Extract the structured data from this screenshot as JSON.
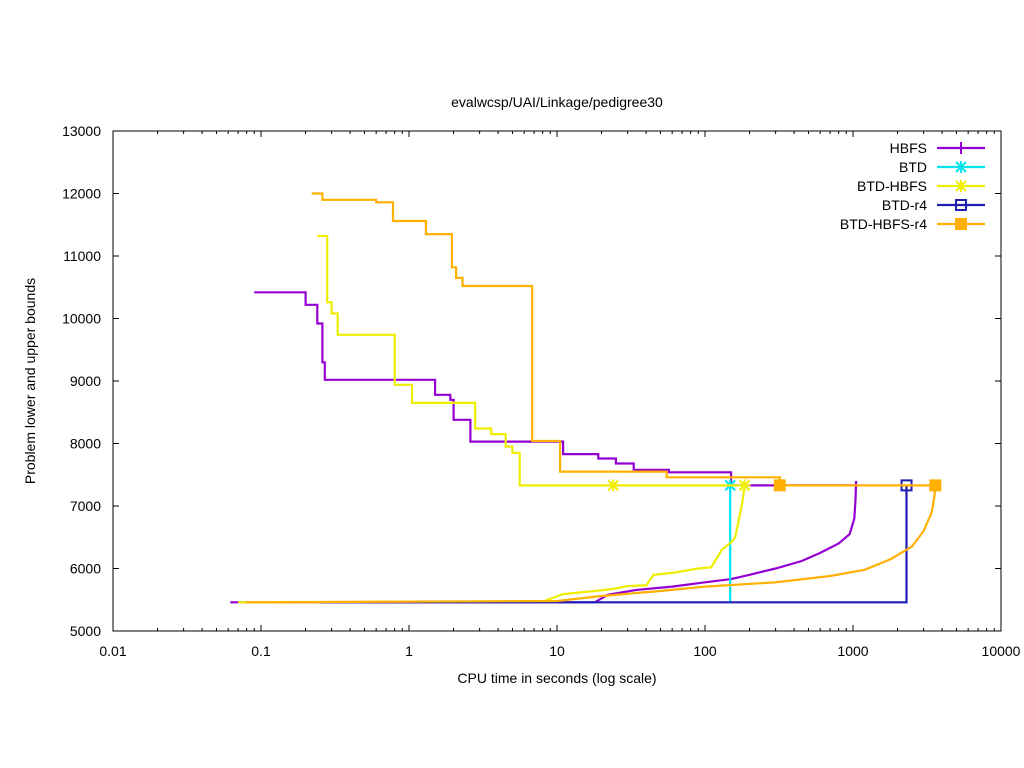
{
  "chart_data": {
    "type": "line",
    "title": "evalwcsp/UAI/Linkage/pedigree30",
    "xlabel": "CPU time in seconds (log scale)",
    "ylabel": "Problem lower and upper bounds",
    "xscale": "log",
    "xlim": [
      0.01,
      10000
    ],
    "ylim": [
      5000,
      13000
    ],
    "x_ticks": [
      0.01,
      0.1,
      1,
      10,
      100,
      1000,
      10000
    ],
    "x_tick_labels": [
      "0.01",
      "0.1",
      "1",
      "10",
      "100",
      "1000",
      "10000"
    ],
    "y_ticks": [
      5000,
      6000,
      7000,
      8000,
      9000,
      10000,
      11000,
      12000,
      13000
    ],
    "y_tick_labels": [
      "5000",
      "6000",
      "7000",
      "8000",
      "9000",
      "10000",
      "11000",
      "12000",
      "13000"
    ],
    "grid": false,
    "legend_position": "top-right",
    "series": [
      {
        "name": "HBFS",
        "color": "#9400d3",
        "marker": "plus",
        "upper": [
          [
            0.09,
            10420
          ],
          [
            0.2,
            10420
          ],
          [
            0.2,
            10220
          ],
          [
            0.24,
            10220
          ],
          [
            0.24,
            9920
          ],
          [
            0.26,
            9920
          ],
          [
            0.26,
            9300
          ],
          [
            0.27,
            9300
          ],
          [
            0.27,
            9020
          ],
          [
            1.5,
            9020
          ],
          [
            1.5,
            8780
          ],
          [
            1.9,
            8780
          ],
          [
            1.9,
            8700
          ],
          [
            2.0,
            8700
          ],
          [
            2.0,
            8380
          ],
          [
            2.6,
            8380
          ],
          [
            2.6,
            8030
          ],
          [
            11,
            8030
          ],
          [
            11,
            7830
          ],
          [
            19,
            7830
          ],
          [
            19,
            7760
          ],
          [
            25,
            7760
          ],
          [
            25,
            7680
          ],
          [
            33,
            7680
          ],
          [
            33,
            7580
          ],
          [
            57,
            7580
          ],
          [
            57,
            7540
          ],
          [
            150,
            7540
          ],
          [
            150,
            7330
          ],
          [
            1050,
            7330
          ]
        ],
        "lower": [
          [
            0.062,
            5460
          ],
          [
            18,
            5460
          ],
          [
            22,
            5580
          ],
          [
            35,
            5660
          ],
          [
            60,
            5710
          ],
          [
            100,
            5780
          ],
          [
            150,
            5830
          ],
          [
            200,
            5900
          ],
          [
            300,
            6000
          ],
          [
            450,
            6120
          ],
          [
            600,
            6250
          ],
          [
            800,
            6400
          ],
          [
            950,
            6550
          ],
          [
            1020,
            6800
          ],
          [
            1040,
            7100
          ],
          [
            1050,
            7400
          ]
        ],
        "marker_points": []
      },
      {
        "name": "BTD",
        "color": "#00e5ee",
        "marker": "star",
        "upper": [
          [
            148,
            7330
          ],
          [
            148,
            5460
          ]
        ],
        "lower": [],
        "marker_points": [
          [
            148,
            7330
          ]
        ]
      },
      {
        "name": "BTD-HBFS",
        "color": "#eeee00",
        "marker": "star",
        "upper": [
          [
            0.24,
            11320
          ],
          [
            0.28,
            11320
          ],
          [
            0.28,
            10260
          ],
          [
            0.3,
            10260
          ],
          [
            0.3,
            10080
          ],
          [
            0.33,
            10080
          ],
          [
            0.33,
            9740
          ],
          [
            0.8,
            9740
          ],
          [
            0.8,
            8940
          ],
          [
            1.05,
            8940
          ],
          [
            1.05,
            8650
          ],
          [
            2.8,
            8650
          ],
          [
            2.8,
            8240
          ],
          [
            3.6,
            8240
          ],
          [
            3.6,
            8150
          ],
          [
            4.5,
            8150
          ],
          [
            4.5,
            7950
          ],
          [
            5.0,
            7950
          ],
          [
            5.0,
            7850
          ],
          [
            5.6,
            7850
          ],
          [
            5.6,
            7330
          ],
          [
            185,
            7330
          ]
        ],
        "lower": [
          [
            0.07,
            5460
          ],
          [
            8,
            5470
          ],
          [
            11,
            5590
          ],
          [
            18,
            5640
          ],
          [
            25,
            5680
          ],
          [
            30,
            5720
          ],
          [
            40,
            5730
          ],
          [
            45,
            5900
          ],
          [
            60,
            5930
          ],
          [
            90,
            6000
          ],
          [
            110,
            6020
          ],
          [
            130,
            6300
          ],
          [
            150,
            6420
          ],
          [
            160,
            6500
          ],
          [
            170,
            6800
          ],
          [
            180,
            7100
          ],
          [
            185,
            7330
          ]
        ],
        "marker_points": [
          [
            24,
            7330
          ],
          [
            185,
            7330
          ]
        ]
      },
      {
        "name": "BTD-r4",
        "color": "#1f1fb4",
        "marker": "square-open",
        "upper": [
          [
            2300,
            7330
          ],
          [
            2300,
            5460
          ],
          [
            0.25,
            5460
          ]
        ],
        "lower": [],
        "marker_points": [
          [
            2300,
            7330
          ]
        ]
      },
      {
        "name": "BTD-HBFS-r4",
        "color": "#ffb000",
        "marker": "square-filled",
        "upper": [
          [
            0.22,
            12000
          ],
          [
            0.26,
            12000
          ],
          [
            0.26,
            11900
          ],
          [
            0.6,
            11900
          ],
          [
            0.6,
            11860
          ],
          [
            0.78,
            11860
          ],
          [
            0.78,
            11560
          ],
          [
            1.3,
            11560
          ],
          [
            1.3,
            11350
          ],
          [
            1.95,
            11350
          ],
          [
            1.95,
            10820
          ],
          [
            2.08,
            10820
          ],
          [
            2.08,
            10650
          ],
          [
            2.3,
            10650
          ],
          [
            2.3,
            10520
          ],
          [
            6.8,
            10520
          ],
          [
            6.8,
            8040
          ],
          [
            10.5,
            8040
          ],
          [
            10.5,
            7550
          ],
          [
            55,
            7550
          ],
          [
            55,
            7460
          ],
          [
            320,
            7460
          ],
          [
            320,
            7330
          ],
          [
            3600,
            7330
          ]
        ],
        "lower": [
          [
            0.08,
            5460
          ],
          [
            10,
            5480
          ],
          [
            20,
            5560
          ],
          [
            50,
            5640
          ],
          [
            100,
            5710
          ],
          [
            300,
            5780
          ],
          [
            700,
            5880
          ],
          [
            1200,
            5980
          ],
          [
            1800,
            6150
          ],
          [
            2500,
            6350
          ],
          [
            3000,
            6600
          ],
          [
            3400,
            6900
          ],
          [
            3550,
            7150
          ],
          [
            3600,
            7330
          ]
        ],
        "marker_points": [
          [
            320,
            7330
          ],
          [
            3600,
            7330
          ]
        ]
      }
    ]
  }
}
